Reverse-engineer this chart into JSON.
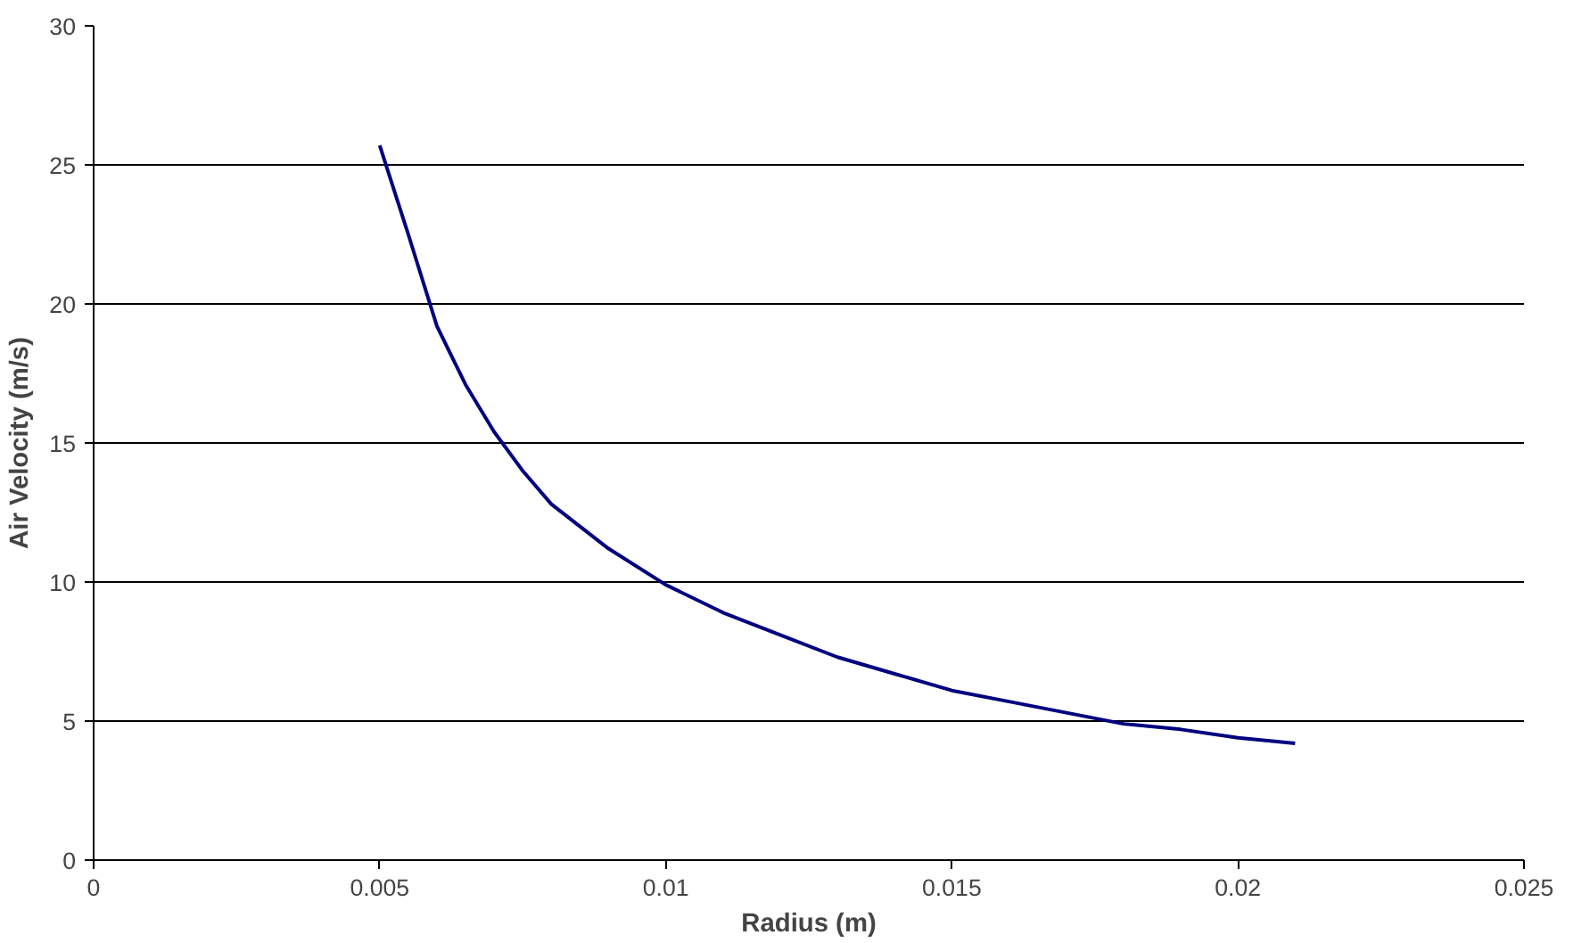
{
  "chart_data": {
    "type": "line",
    "xlabel": "Radius (m)",
    "ylabel": "Air Velocity (m/s)",
    "series": [
      {
        "color": "#000080",
        "x": [
          0.005,
          0.0055,
          0.006,
          0.0065,
          0.007,
          0.0075,
          0.008,
          0.009,
          0.01,
          0.011,
          0.012,
          0.013,
          0.014,
          0.015,
          0.016,
          0.017,
          0.018,
          0.019,
          0.02,
          0.021
        ],
        "values": [
          25.7,
          22.5,
          19.2,
          17.1,
          15.4,
          14.0,
          12.8,
          11.2,
          9.9,
          8.9,
          8.1,
          7.3,
          6.7,
          6.1,
          5.7,
          5.3,
          4.9,
          4.7,
          4.4,
          4.2
        ]
      }
    ],
    "xlim": [
      0,
      0.025
    ],
    "xticks": [
      0,
      0.005,
      0.01,
      0.015,
      0.02,
      0.025
    ],
    "ylim": [
      0,
      30
    ],
    "yticks": [
      0,
      5,
      10,
      15,
      20,
      25,
      30
    ],
    "grid": "y",
    "marker": "none",
    "line_style": "solid"
  }
}
